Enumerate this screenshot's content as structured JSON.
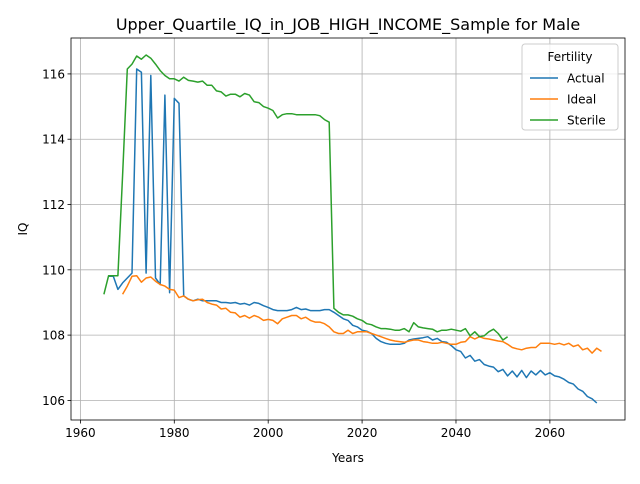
{
  "chart_data": {
    "type": "line",
    "title": "Upper_Quartile_IQ_in_JOB_HIGH_INCOME_Sample for Male",
    "xlabel": "Years",
    "ylabel": "IQ",
    "xlim": [
      1958,
      2076
    ],
    "ylim": [
      105.4,
      117.1
    ],
    "x_ticks": [
      1960,
      1980,
      2000,
      2020,
      2040,
      2060
    ],
    "y_ticks": [
      106,
      108,
      110,
      112,
      114,
      116
    ],
    "grid": true,
    "legend": {
      "title": "Fertility",
      "position": "top-right"
    },
    "series": [
      {
        "name": "Actual",
        "color": "#1f77b4",
        "points": [
          [
            1966,
            109.8
          ],
          [
            1967,
            109.8
          ],
          [
            1968,
            109.4
          ],
          [
            1969,
            109.6
          ],
          [
            1970,
            109.75
          ],
          [
            1971,
            109.9
          ],
          [
            1972,
            116.15
          ],
          [
            1973,
            116.05
          ],
          [
            1974,
            109.9
          ],
          [
            1975,
            115.95
          ],
          [
            1976,
            109.75
          ],
          [
            1977,
            109.55
          ],
          [
            1978,
            115.35
          ],
          [
            1979,
            109.3
          ],
          [
            1980,
            115.25
          ],
          [
            1981,
            115.1
          ],
          [
            1982,
            109.2
          ],
          [
            1983,
            109.1
          ],
          [
            1984,
            109.05
          ],
          [
            1985,
            109.1
          ],
          [
            1986,
            109.05
          ],
          [
            1987,
            109.05
          ],
          [
            1988,
            109.05
          ],
          [
            1989,
            109.05
          ],
          [
            1990,
            109.0
          ],
          [
            1991,
            109.0
          ],
          [
            1992,
            108.98
          ],
          [
            1993,
            109.0
          ],
          [
            1994,
            108.95
          ],
          [
            1995,
            108.97
          ],
          [
            1996,
            108.92
          ],
          [
            1997,
            109.0
          ],
          [
            1998,
            108.97
          ],
          [
            1999,
            108.9
          ],
          [
            2000,
            108.85
          ],
          [
            2001,
            108.78
          ],
          [
            2002,
            108.75
          ],
          [
            2003,
            108.75
          ],
          [
            2004,
            108.75
          ],
          [
            2005,
            108.78
          ],
          [
            2006,
            108.85
          ],
          [
            2007,
            108.78
          ],
          [
            2008,
            108.8
          ],
          [
            2009,
            108.75
          ],
          [
            2010,
            108.75
          ],
          [
            2011,
            108.75
          ],
          [
            2012,
            108.78
          ],
          [
            2013,
            108.78
          ],
          [
            2014,
            108.7
          ],
          [
            2015,
            108.6
          ],
          [
            2016,
            108.5
          ],
          [
            2017,
            108.45
          ],
          [
            2018,
            108.3
          ],
          [
            2019,
            108.25
          ],
          [
            2020,
            108.15
          ],
          [
            2021,
            108.12
          ],
          [
            2022,
            108.05
          ],
          [
            2023,
            107.9
          ],
          [
            2024,
            107.8
          ],
          [
            2025,
            107.75
          ],
          [
            2026,
            107.72
          ],
          [
            2027,
            107.72
          ],
          [
            2028,
            107.72
          ],
          [
            2029,
            107.75
          ],
          [
            2030,
            107.85
          ],
          [
            2031,
            107.88
          ],
          [
            2032,
            107.9
          ],
          [
            2033,
            107.92
          ],
          [
            2034,
            107.95
          ],
          [
            2035,
            107.85
          ],
          [
            2036,
            107.9
          ],
          [
            2037,
            107.8
          ],
          [
            2038,
            107.78
          ],
          [
            2039,
            107.68
          ],
          [
            2040,
            107.55
          ],
          [
            2041,
            107.5
          ],
          [
            2042,
            107.3
          ],
          [
            2043,
            107.38
          ],
          [
            2044,
            107.2
          ],
          [
            2045,
            107.25
          ],
          [
            2046,
            107.1
          ],
          [
            2047,
            107.05
          ],
          [
            2048,
            107.02
          ],
          [
            2049,
            106.88
          ],
          [
            2050,
            106.95
          ],
          [
            2051,
            106.75
          ],
          [
            2052,
            106.9
          ],
          [
            2053,
            106.72
          ],
          [
            2054,
            106.92
          ],
          [
            2055,
            106.7
          ],
          [
            2056,
            106.9
          ],
          [
            2057,
            106.78
          ],
          [
            2058,
            106.92
          ],
          [
            2059,
            106.78
          ],
          [
            2060,
            106.85
          ],
          [
            2061,
            106.75
          ],
          [
            2062,
            106.72
          ],
          [
            2063,
            106.65
          ],
          [
            2064,
            106.55
          ],
          [
            2065,
            106.5
          ],
          [
            2066,
            106.35
          ],
          [
            2067,
            106.28
          ],
          [
            2068,
            106.12
          ],
          [
            2069,
            106.05
          ],
          [
            2070,
            105.92
          ]
        ]
      },
      {
        "name": "Ideal",
        "color": "#ff7f0e",
        "points": [
          [
            1969,
            109.25
          ],
          [
            1970,
            109.5
          ],
          [
            1971,
            109.8
          ],
          [
            1972,
            109.82
          ],
          [
            1973,
            109.62
          ],
          [
            1974,
            109.75
          ],
          [
            1975,
            109.78
          ],
          [
            1976,
            109.65
          ],
          [
            1977,
            109.55
          ],
          [
            1978,
            109.5
          ],
          [
            1979,
            109.4
          ],
          [
            1980,
            109.38
          ],
          [
            1981,
            109.15
          ],
          [
            1982,
            109.2
          ],
          [
            1983,
            109.1
          ],
          [
            1984,
            109.05
          ],
          [
            1985,
            109.08
          ],
          [
            1986,
            109.1
          ],
          [
            1987,
            109.0
          ],
          [
            1988,
            108.95
          ],
          [
            1989,
            108.92
          ],
          [
            1990,
            108.8
          ],
          [
            1991,
            108.82
          ],
          [
            1992,
            108.7
          ],
          [
            1993,
            108.68
          ],
          [
            1994,
            108.55
          ],
          [
            1995,
            108.6
          ],
          [
            1996,
            108.52
          ],
          [
            1997,
            108.6
          ],
          [
            1998,
            108.55
          ],
          [
            1999,
            108.45
          ],
          [
            2000,
            108.48
          ],
          [
            2001,
            108.45
          ],
          [
            2002,
            108.35
          ],
          [
            2003,
            108.5
          ],
          [
            2004,
            108.55
          ],
          [
            2005,
            108.6
          ],
          [
            2006,
            108.6
          ],
          [
            2007,
            108.5
          ],
          [
            2008,
            108.55
          ],
          [
            2009,
            108.45
          ],
          [
            2010,
            108.4
          ],
          [
            2011,
            108.4
          ],
          [
            2012,
            108.35
          ],
          [
            2013,
            108.25
          ],
          [
            2014,
            108.1
          ],
          [
            2015,
            108.05
          ],
          [
            2016,
            108.05
          ],
          [
            2017,
            108.15
          ],
          [
            2018,
            108.05
          ],
          [
            2019,
            108.1
          ],
          [
            2020,
            108.1
          ],
          [
            2021,
            108.1
          ],
          [
            2022,
            108.05
          ],
          [
            2023,
            108.0
          ],
          [
            2024,
            107.95
          ],
          [
            2025,
            107.9
          ],
          [
            2026,
            107.85
          ],
          [
            2027,
            107.82
          ],
          [
            2028,
            107.8
          ],
          [
            2029,
            107.78
          ],
          [
            2030,
            107.82
          ],
          [
            2031,
            107.85
          ],
          [
            2032,
            107.85
          ],
          [
            2033,
            107.8
          ],
          [
            2034,
            107.78
          ],
          [
            2035,
            107.75
          ],
          [
            2036,
            107.75
          ],
          [
            2037,
            107.78
          ],
          [
            2038,
            107.75
          ],
          [
            2039,
            107.72
          ],
          [
            2040,
            107.72
          ],
          [
            2041,
            107.78
          ],
          [
            2042,
            107.8
          ],
          [
            2043,
            107.95
          ],
          [
            2044,
            107.88
          ],
          [
            2045,
            107.95
          ],
          [
            2046,
            107.9
          ],
          [
            2047,
            107.88
          ],
          [
            2048,
            107.85
          ],
          [
            2049,
            107.82
          ],
          [
            2050,
            107.8
          ],
          [
            2051,
            107.72
          ],
          [
            2052,
            107.62
          ],
          [
            2053,
            107.58
          ],
          [
            2054,
            107.55
          ],
          [
            2055,
            107.6
          ],
          [
            2056,
            107.62
          ],
          [
            2057,
            107.62
          ],
          [
            2058,
            107.75
          ],
          [
            2059,
            107.75
          ],
          [
            2060,
            107.75
          ],
          [
            2061,
            107.72
          ],
          [
            2062,
            107.75
          ],
          [
            2063,
            107.7
          ],
          [
            2064,
            107.75
          ],
          [
            2065,
            107.65
          ],
          [
            2066,
            107.7
          ],
          [
            2067,
            107.55
          ],
          [
            2068,
            107.6
          ],
          [
            2069,
            107.45
          ],
          [
            2070,
            107.6
          ],
          [
            2071,
            107.5
          ]
        ]
      },
      {
        "name": "Sterile",
        "color": "#2ca02c",
        "points": [
          [
            1965,
            109.25
          ],
          [
            1966,
            109.82
          ],
          [
            1967,
            109.82
          ],
          [
            1968,
            109.82
          ],
          [
            1969,
            112.9
          ],
          [
            1970,
            116.15
          ],
          [
            1971,
            116.3
          ],
          [
            1972,
            116.55
          ],
          [
            1973,
            116.45
          ],
          [
            1974,
            116.58
          ],
          [
            1975,
            116.48
          ],
          [
            1976,
            116.3
          ],
          [
            1977,
            116.1
          ],
          [
            1978,
            115.95
          ],
          [
            1979,
            115.85
          ],
          [
            1980,
            115.85
          ],
          [
            1981,
            115.78
          ],
          [
            1982,
            115.9
          ],
          [
            1983,
            115.8
          ],
          [
            1984,
            115.78
          ],
          [
            1985,
            115.75
          ],
          [
            1986,
            115.78
          ],
          [
            1987,
            115.65
          ],
          [
            1988,
            115.65
          ],
          [
            1989,
            115.48
          ],
          [
            1990,
            115.45
          ],
          [
            1991,
            115.32
          ],
          [
            1992,
            115.38
          ],
          [
            1993,
            115.38
          ],
          [
            1994,
            115.3
          ],
          [
            1995,
            115.4
          ],
          [
            1996,
            115.35
          ],
          [
            1997,
            115.15
          ],
          [
            1998,
            115.12
          ],
          [
            1999,
            115.0
          ],
          [
            2000,
            114.95
          ],
          [
            2001,
            114.88
          ],
          [
            2002,
            114.65
          ],
          [
            2003,
            114.75
          ],
          [
            2004,
            114.78
          ],
          [
            2005,
            114.78
          ],
          [
            2006,
            114.75
          ],
          [
            2007,
            114.75
          ],
          [
            2008,
            114.75
          ],
          [
            2009,
            114.75
          ],
          [
            2010,
            114.75
          ],
          [
            2011,
            114.72
          ],
          [
            2012,
            114.6
          ],
          [
            2013,
            114.52
          ],
          [
            2014,
            108.82
          ],
          [
            2015,
            108.7
          ],
          [
            2016,
            108.62
          ],
          [
            2017,
            108.62
          ],
          [
            2018,
            108.58
          ],
          [
            2019,
            108.5
          ],
          [
            2020,
            108.45
          ],
          [
            2021,
            108.35
          ],
          [
            2022,
            108.32
          ],
          [
            2023,
            108.25
          ],
          [
            2024,
            108.2
          ],
          [
            2025,
            108.2
          ],
          [
            2026,
            108.18
          ],
          [
            2027,
            108.15
          ],
          [
            2028,
            108.15
          ],
          [
            2029,
            108.2
          ],
          [
            2030,
            108.1
          ],
          [
            2031,
            108.38
          ],
          [
            2032,
            108.25
          ],
          [
            2033,
            108.22
          ],
          [
            2034,
            108.2
          ],
          [
            2035,
            108.18
          ],
          [
            2036,
            108.1
          ],
          [
            2037,
            108.15
          ],
          [
            2038,
            108.15
          ],
          [
            2039,
            108.18
          ],
          [
            2040,
            108.15
          ],
          [
            2041,
            108.12
          ],
          [
            2042,
            108.2
          ],
          [
            2043,
            107.98
          ],
          [
            2044,
            108.1
          ],
          [
            2045,
            107.95
          ],
          [
            2046,
            107.98
          ],
          [
            2047,
            108.1
          ],
          [
            2048,
            108.18
          ],
          [
            2049,
            108.05
          ],
          [
            2050,
            107.85
          ],
          [
            2051,
            107.95
          ]
        ]
      }
    ]
  }
}
